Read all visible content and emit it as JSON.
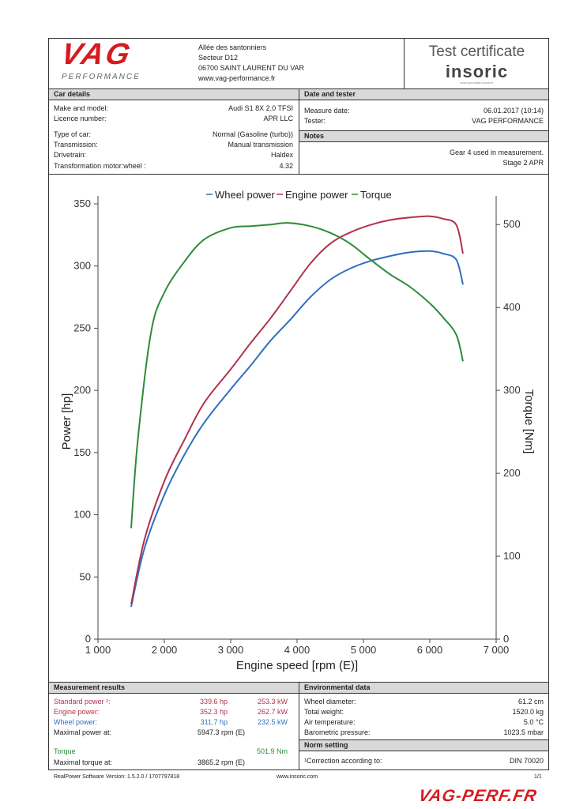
{
  "header": {
    "brand_logo_main": "VAG",
    "brand_logo_sub": "PERFORMANCE",
    "address_lines": [
      "Allée des santonniers",
      "Secteur D12",
      "06700 SAINT LAURENT DU VAR",
      "www.vag-performance.fr"
    ],
    "certificate_title": "Test certificate",
    "insoric_logo": "insoric",
    "insoric_tagline": "www.dynodata.insoric.fr"
  },
  "car_details": {
    "heading": "Car details",
    "rows": [
      {
        "label": "Make and model:",
        "value": "Audi S1 8X 2.0 TFSI"
      },
      {
        "label": "Licence number:",
        "value": "APR LLC"
      },
      {
        "label": "Type of car:",
        "value": "Normal (Gasoline (turbo))"
      },
      {
        "label": "Transmission:",
        "value": "Manual transmission"
      },
      {
        "label": "Drivetrain:",
        "value": "Haldex"
      },
      {
        "label": "Transformation motor:wheel :",
        "value": "4.32"
      }
    ]
  },
  "date_tester": {
    "heading": "Date and tester",
    "measure_date_label": "Measure date:",
    "measure_date_value": "06.01.2017 (10:14)",
    "tester_label": "Tester:",
    "tester_value": "VAG PERFORMANCE"
  },
  "notes": {
    "heading": "Notes",
    "line1": "Gear 4 used in measurement.",
    "line2": "Stage 2 APR"
  },
  "colors": {
    "wheel": "#2f6fbf",
    "engine": "#b0324c",
    "torque": "#2e8b3a"
  },
  "chart_data": {
    "type": "line",
    "legend": [
      "Wheel power",
      "Engine power",
      "Torque"
    ],
    "legend_position": "top-center",
    "xlabel": "Engine speed [rpm (E)]",
    "ylabel": "Power [hp]",
    "y2label": "Torque [Nm]",
    "xlim": [
      1000,
      7000
    ],
    "ylim": [
      0,
      350
    ],
    "y2lim": [
      0,
      525
    ],
    "x_ticks": [
      "1 000",
      "2 000",
      "3 000",
      "4 000",
      "5 000",
      "6 000",
      "7 000"
    ],
    "x_tick_values": [
      1000,
      2000,
      3000,
      4000,
      5000,
      6000,
      7000
    ],
    "y_ticks": [
      0,
      50,
      100,
      150,
      200,
      250,
      300,
      350
    ],
    "y2_ticks": [
      0,
      100,
      200,
      300,
      400,
      500
    ],
    "grid": false,
    "series": [
      {
        "name": "Wheel power",
        "axis": "left",
        "x": [
          1500,
          1700,
          2000,
          2300,
          2600,
          3000,
          3300,
          3600,
          3900,
          4200,
          4500,
          4800,
          5100,
          5400,
          5700,
          6000,
          6200,
          6400,
          6500
        ],
        "y": [
          26,
          73,
          116,
          148,
          174,
          201,
          220,
          240,
          257,
          275,
          289,
          298,
          304,
          308,
          311,
          312,
          310,
          305,
          285
        ]
      },
      {
        "name": "Engine power",
        "axis": "left",
        "x": [
          1500,
          1700,
          2000,
          2300,
          2600,
          3000,
          3300,
          3600,
          3900,
          4200,
          4500,
          4800,
          5100,
          5400,
          5700,
          6000,
          6200,
          6400,
          6500
        ],
        "y": [
          28,
          80,
          127,
          160,
          190,
          217,
          238,
          258,
          280,
          302,
          318,
          327,
          333,
          337,
          339,
          340,
          338,
          333,
          310
        ]
      },
      {
        "name": "Torque",
        "axis": "right",
        "x": [
          1500,
          1600,
          1800,
          2000,
          2300,
          2600,
          3000,
          3300,
          3600,
          3865,
          4200,
          4500,
          4800,
          5100,
          5400,
          5700,
          6000,
          6200,
          6400,
          6500
        ],
        "y": [
          134,
          240,
          370,
          418,
          455,
          482,
          496,
          498,
          500,
          502,
          498,
          490,
          477,
          458,
          440,
          425,
          405,
          388,
          367,
          335
        ]
      }
    ]
  },
  "measurement_results": {
    "heading": "Measurement results",
    "standard_label": "Standard power ¹:",
    "standard_hp": "339.6 hp",
    "standard_kw": "253.3 kW",
    "engine_label": "Engine power:",
    "engine_hp": "352.3 hp",
    "engine_kw": "262.7 kW",
    "wheel_label": "Wheel power:",
    "wheel_hp": "311.7 hp",
    "wheel_kw": "232.5 kW",
    "max_power_label": "Maximal power at:",
    "max_power_value": "5947.3 rpm (E)",
    "torque_label": "Torque",
    "torque_value": "501.9 Nm",
    "max_torque_label": "Maximal torque at:",
    "max_torque_value": "3865.2 rpm (E)"
  },
  "environmental": {
    "heading": "Environmental data",
    "rows": [
      {
        "label": "Wheel diameter:",
        "value": "61.2 cm"
      },
      {
        "label": "Total weight:",
        "value": "1520.0 kg"
      },
      {
        "label": "Air temperature:",
        "value": "5.0 °C"
      },
      {
        "label": "Barometric pressure:",
        "value": "1023.5 mbar"
      }
    ]
  },
  "norm_setting": {
    "heading": "Norm setting",
    "label": "¹Correction according to:",
    "value": "DIN 70020"
  },
  "footer": {
    "software": "RealPower Software Version:  1.5.2.0 / 1707797818",
    "website": "www.insoric.com",
    "page": "1/1",
    "watermark": "VAG-PERF.FR"
  }
}
